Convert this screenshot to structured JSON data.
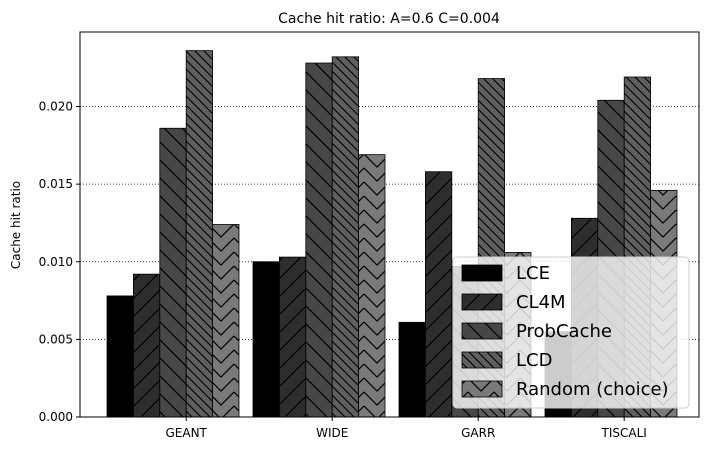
{
  "chart_data": {
    "type": "bar",
    "title": "Cache hit ratio: A=0.6 C=0.004",
    "xlabel": "",
    "ylabel": "Cache hit ratio",
    "categories": [
      "GEANT",
      "WIDE",
      "GARR",
      "TISCALI"
    ],
    "ylim": [
      0,
      0.0248
    ],
    "yticks": [
      0.0,
      0.005,
      0.01,
      0.015,
      0.02
    ],
    "ytick_labels": [
      "0.000",
      "0.005",
      "0.010",
      "0.015",
      "0.020"
    ],
    "grid": "horizontal dotted",
    "legend_position": "lower-right",
    "series": [
      {
        "name": "LCE",
        "color": "#000000",
        "hatch": "none",
        "values": [
          0.0078,
          0.01,
          0.0061,
          0.0055
        ]
      },
      {
        "name": "CL4M",
        "color": "#2e2e2e",
        "hatch": "forward-slash",
        "values": [
          0.0092,
          0.0103,
          0.0158,
          0.0128
        ]
      },
      {
        "name": "ProbCache",
        "color": "#474747",
        "hatch": "back-slash",
        "values": [
          0.0186,
          0.0228,
          0.0097,
          0.0204
        ]
      },
      {
        "name": "LCD",
        "color": "#5f5f5f",
        "hatch": "double-back-slash",
        "values": [
          0.0236,
          0.0232,
          0.0218,
          0.0219
        ]
      },
      {
        "name": "Random (choice)",
        "color": "#7a7a7a",
        "hatch": "chevron",
        "values": [
          0.0124,
          0.0169,
          0.0106,
          0.0146
        ]
      }
    ]
  }
}
